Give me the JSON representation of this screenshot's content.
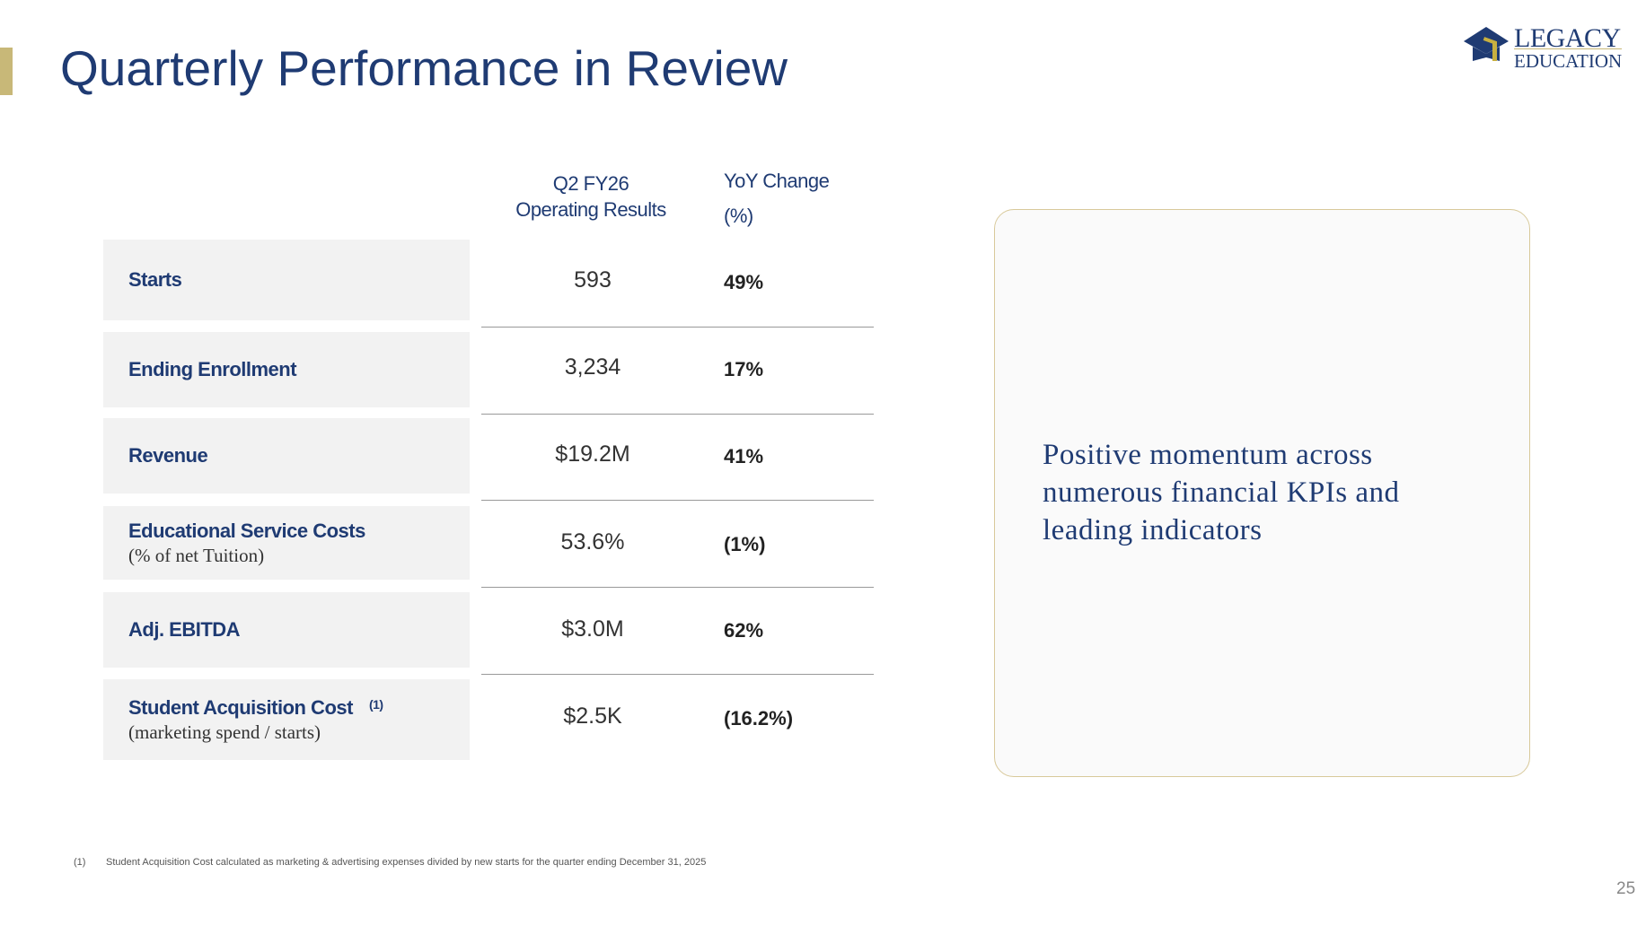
{
  "title": "Quarterly Performance in Review",
  "logo": {
    "line1": "LEGACY",
    "line2": "EDUCATION"
  },
  "headers": {
    "col1_line1": "Q2 FY26",
    "col1_line2": "Operating Results",
    "col2_line1": "YoY Change",
    "col2_line2": "(%)"
  },
  "rows": [
    {
      "label": "Starts",
      "sub": "",
      "value": "593",
      "yoy": "49%"
    },
    {
      "label": "Ending Enrollment",
      "sub": "",
      "value": "3,234",
      "yoy": "17%"
    },
    {
      "label": "Revenue",
      "sub": "",
      "value": "$19.2M",
      "yoy": "41%"
    },
    {
      "label": "Educational Service Costs",
      "sub": "(% of net Tuition)",
      "value": "53.6%",
      "yoy": "(1%)"
    },
    {
      "label": "Adj. EBITDA",
      "sub": "",
      "value": "$3.0M",
      "yoy": "62%"
    },
    {
      "label": "Student Acquisition Cost",
      "note": "(1)",
      "sub": "(marketing spend / starts)",
      "value": "$2.5K",
      "yoy": "(16.2%)"
    }
  ],
  "panel_text": "Positive momentum across numerous financial KPIs and leading indicators",
  "footnote": {
    "marker": "(1)",
    "text": "Student Acquisition Cost calculated as marketing & advertising expenses divided by new starts for the quarter ending December 31, 2025"
  },
  "page_number": "25"
}
